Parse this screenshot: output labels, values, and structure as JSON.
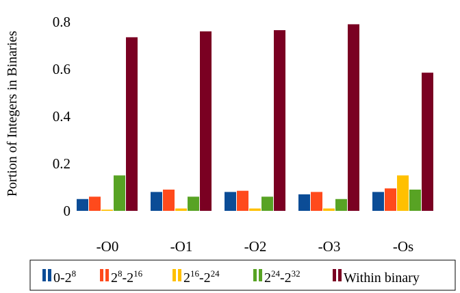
{
  "chart_data": {
    "type": "bar",
    "title": "",
    "xlabel": "",
    "ylabel": "Portion of Integers in Binaries",
    "categories": [
      "-O0",
      "-O1",
      "-O2",
      "-O3",
      "-Os"
    ],
    "y_ticks": [
      "0",
      "0.2",
      "0.4",
      "0.6",
      "0.8"
    ],
    "ylim": [
      0,
      0.85
    ],
    "grid": false,
    "legend_position": "bottom",
    "series": [
      {
        "name": "0-2^8",
        "label_parts": [
          "0-2",
          "8"
        ],
        "color": "#0b4c96",
        "values": [
          0.05,
          0.08,
          0.08,
          0.07,
          0.08
        ]
      },
      {
        "name": "2^8-2^16",
        "label_parts": [
          "2",
          "8",
          "-2",
          "16"
        ],
        "color": "#ff4a1c",
        "values": [
          0.06,
          0.09,
          0.085,
          0.08,
          0.095
        ]
      },
      {
        "name": "2^16-2^24",
        "label_parts": [
          "2",
          "16",
          "-2",
          "24"
        ],
        "color": "#ffc000",
        "values": [
          0.005,
          0.01,
          0.01,
          0.01,
          0.15
        ]
      },
      {
        "name": "2^24-2^32",
        "label_parts": [
          "2",
          "24",
          "-2",
          "32"
        ],
        "color": "#58a324",
        "values": [
          0.15,
          0.06,
          0.06,
          0.05,
          0.09
        ]
      },
      {
        "name": "Within binary",
        "label_parts": [
          "Within binary"
        ],
        "color": "#7a0022",
        "values": [
          0.735,
          0.76,
          0.765,
          0.79,
          0.585
        ]
      }
    ]
  }
}
